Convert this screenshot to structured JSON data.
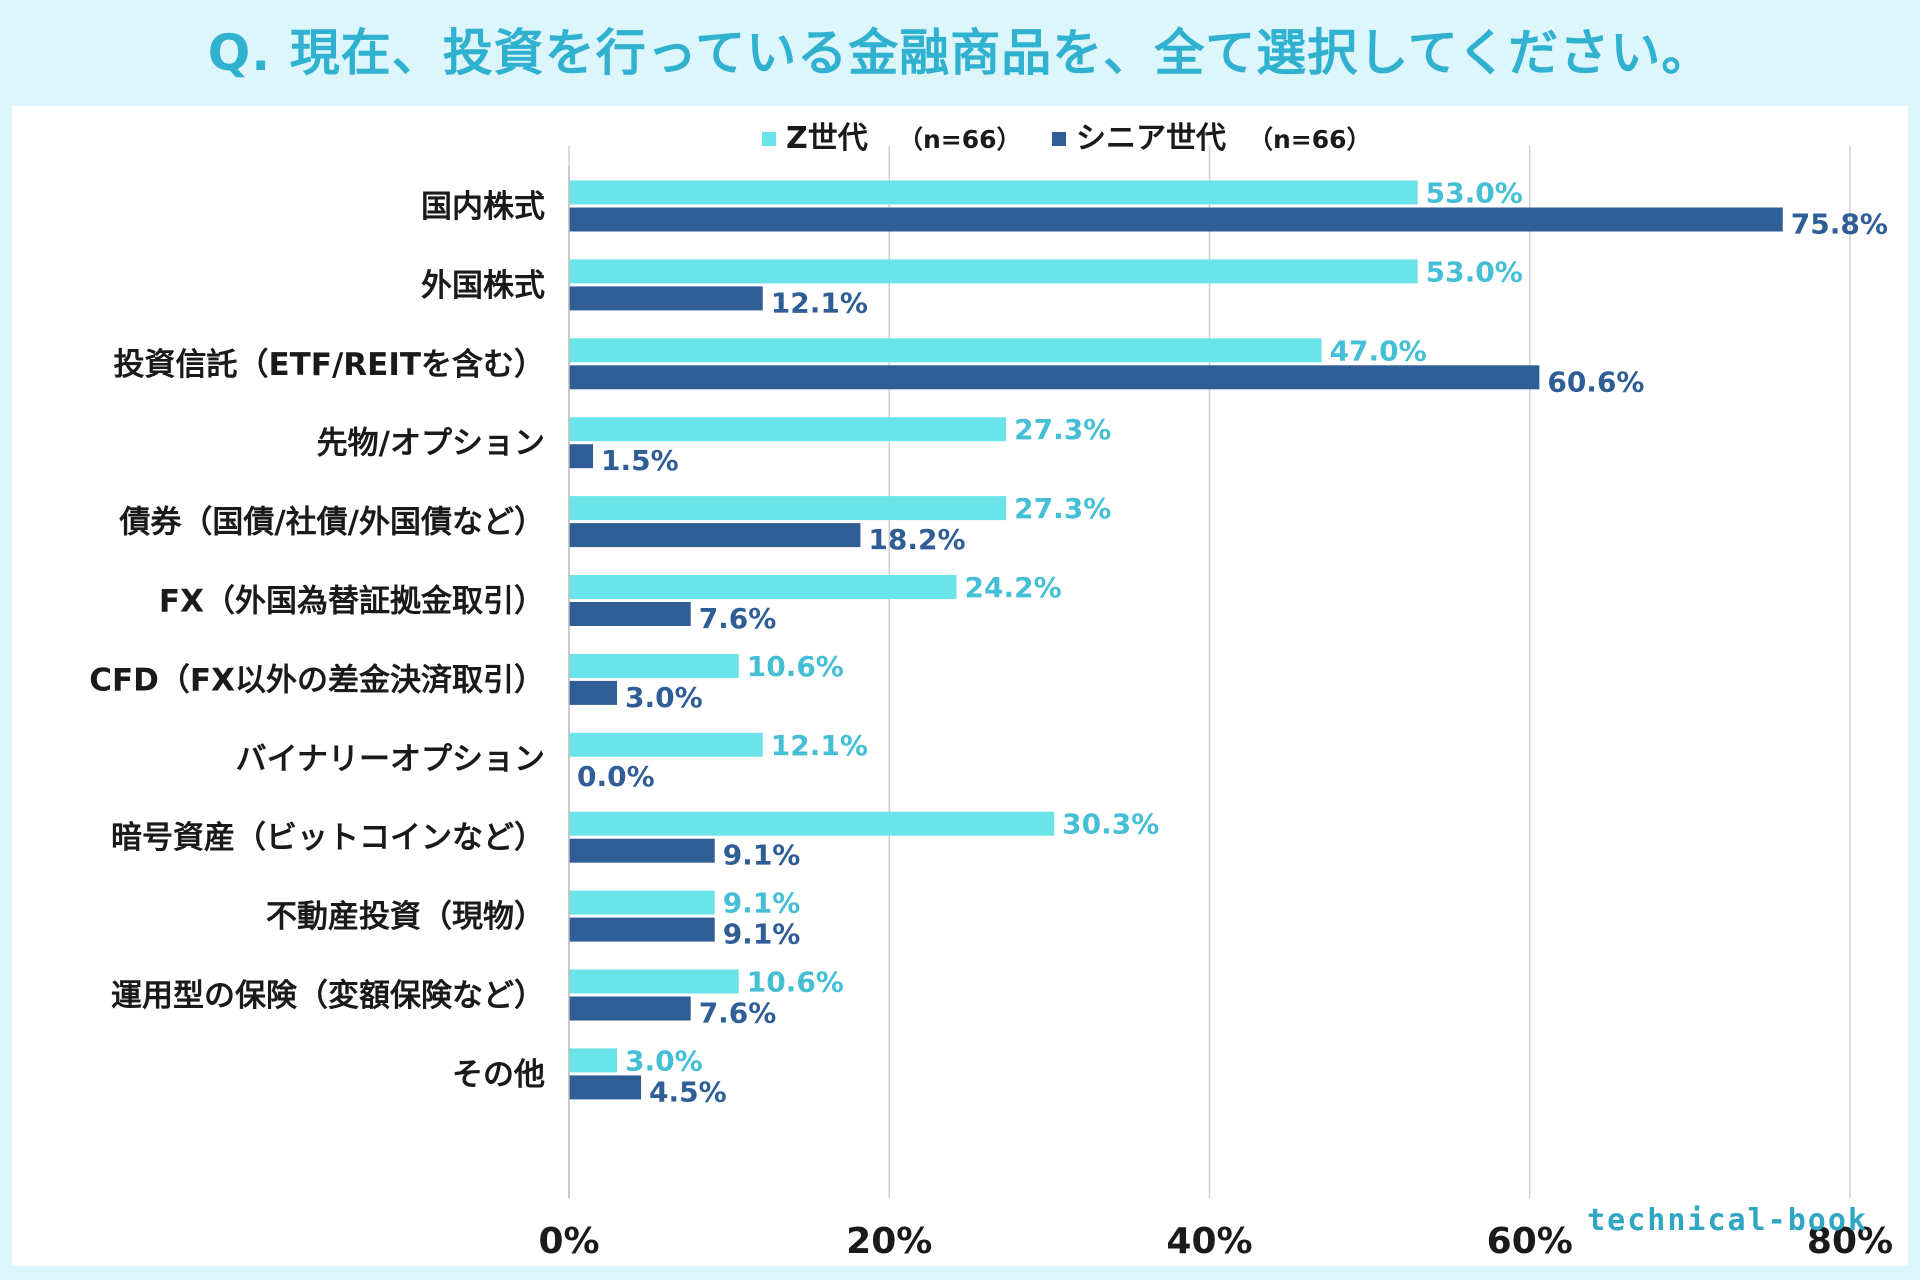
{
  "title": "Q. 現在、投資を行っている金融商品を、全て選択してください。",
  "brand": "technical-book",
  "colors": {
    "z_series": "#6ae3e9",
    "senior_series": "#2f5d95",
    "z_label": "#45bfd6",
    "senior_label": "#2f5d95",
    "title": "#2fb1cf",
    "background": "#ddf6fb",
    "gridline": "#d0d0d0"
  },
  "chart_data": {
    "type": "bar",
    "orientation": "horizontal",
    "title": "Q. 現在、投資を行っている金融商品を、全て選択してください。",
    "xlim": [
      0,
      80
    ],
    "x_ticks": [
      "0%",
      "20%",
      "40%",
      "60%",
      "80%"
    ],
    "x_tick_values": [
      0,
      20,
      40,
      60,
      80
    ],
    "legend_position": "top",
    "categories": [
      "国内株式",
      "外国株式",
      "投資信託（ETF/REITを含む）",
      "先物/オプション",
      "債券（国債/社債/外国債など）",
      "FX（外国為替証拠金取引）",
      "CFD（FX以外の差金決済取引）",
      "バイナリーオプション",
      "暗号資産（ビットコインなど）",
      "不動産投資（現物）",
      "運用型の保険（変額保険など）",
      "その他"
    ],
    "series": [
      {
        "name": "Z世代",
        "n_label": "（n=66）",
        "values": [
          53.0,
          53.0,
          47.0,
          27.3,
          27.3,
          24.2,
          10.6,
          12.1,
          30.3,
          9.1,
          10.6,
          3.0
        ],
        "labels": [
          "53.0%",
          "53.0%",
          "47.0%",
          "27.3%",
          "27.3%",
          "24.2%",
          "10.6%",
          "12.1%",
          "30.3%",
          "9.1%",
          "10.6%",
          "3.0%"
        ]
      },
      {
        "name": "シニア世代",
        "n_label": "（n=66）",
        "values": [
          75.8,
          12.1,
          60.6,
          1.5,
          18.2,
          7.6,
          3.0,
          0.0,
          9.1,
          9.1,
          7.6,
          4.5
        ],
        "labels": [
          "75.8%",
          "12.1%",
          "60.6%",
          "1.5%",
          "18.2%",
          "7.6%",
          "3.0%",
          "0.0%",
          "9.1%",
          "9.1%",
          "7.6%",
          "4.5%"
        ]
      }
    ]
  }
}
